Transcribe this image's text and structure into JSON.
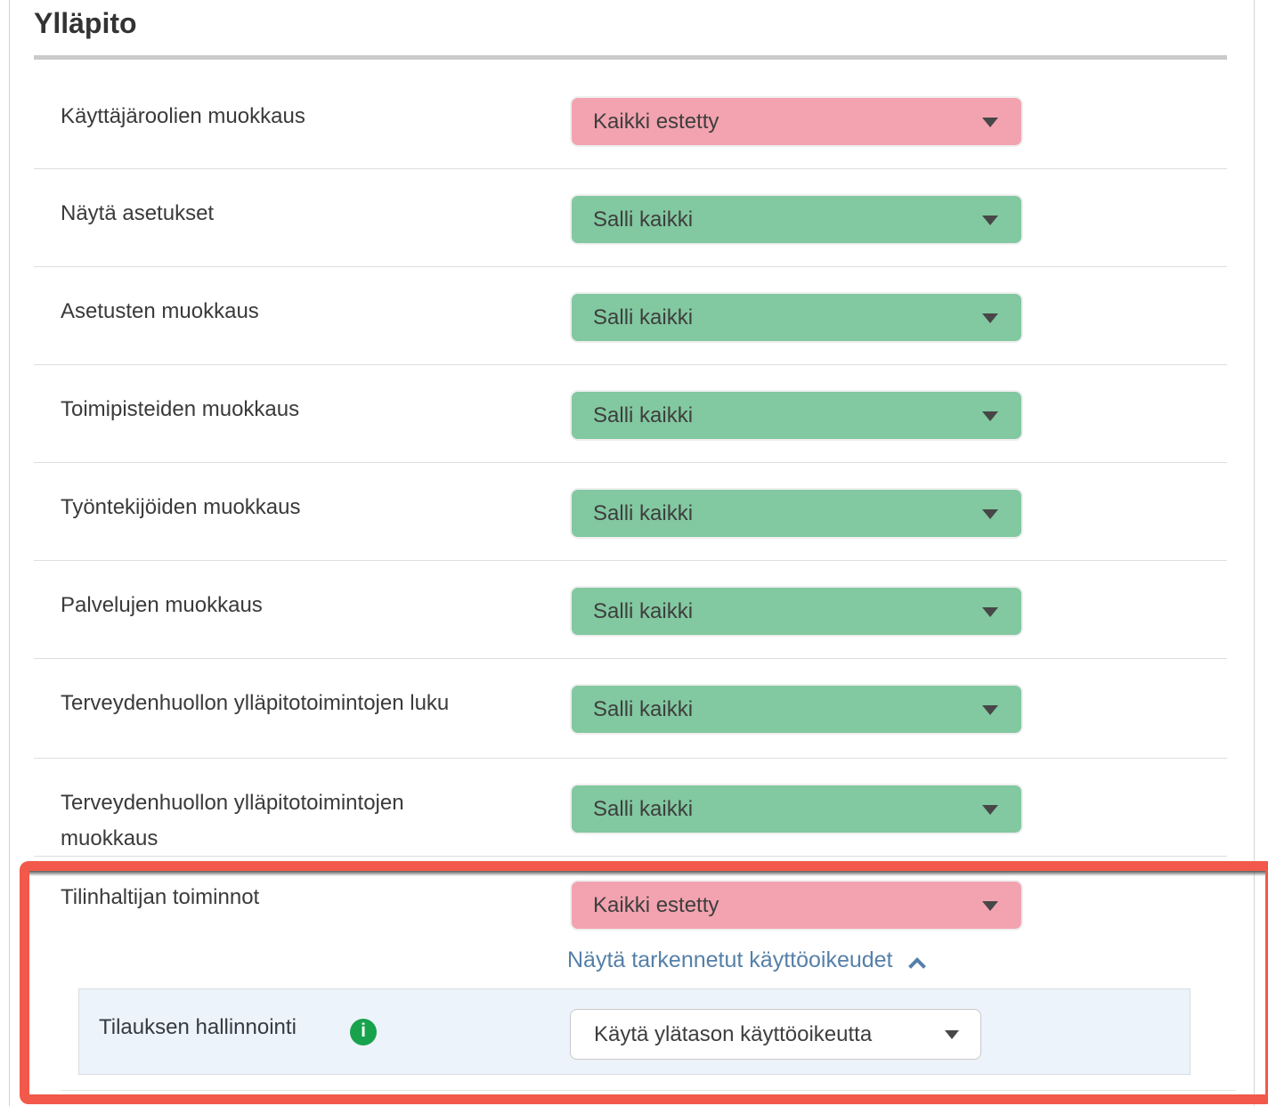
{
  "header": {
    "title": "Ylläpito"
  },
  "rows": [
    {
      "label": "Käyttäjäroolien muokkaus",
      "value": "Kaikki estetty",
      "state": "blocked"
    },
    {
      "label": "Näytä asetukset",
      "value": "Salli kaikki",
      "state": "allowed"
    },
    {
      "label": "Asetusten muokkaus",
      "value": "Salli kaikki",
      "state": "allowed"
    },
    {
      "label": "Toimipisteiden muokkaus",
      "value": "Salli kaikki",
      "state": "allowed"
    },
    {
      "label": "Työntekijöiden muokkaus",
      "value": "Salli kaikki",
      "state": "allowed"
    },
    {
      "label": "Palvelujen muokkaus",
      "value": "Salli kaikki",
      "state": "allowed"
    },
    {
      "label": "Terveydenhuollon ylläpitotoimintojen luku",
      "value": "Salli kaikki",
      "state": "allowed"
    },
    {
      "label": "Terveydenhuollon ylläpitotoimintojen muokkaus",
      "value": "Salli kaikki",
      "state": "allowed"
    }
  ],
  "highlighted_row": {
    "label": "Tilinhaltijan toiminnot",
    "value": "Kaikki estetty",
    "state": "blocked",
    "advanced_toggle": {
      "label": "Näytä tarkennetut käyttöoikeudet",
      "icon": "chevron-up-icon",
      "expanded": true
    },
    "sub_row": {
      "label": "Tilauksen hallinnointi",
      "info_icon": "info-icon",
      "value": "Käytä ylätason käyttöoikeutta"
    }
  },
  "icons": {
    "dropdown_caret": "chevron-down-icon",
    "collapse": "chevron-up-icon",
    "info": "info-icon"
  },
  "colors": {
    "blocked_bg": "#F2A3AF",
    "allowed_bg": "#82C8A0",
    "highlight_border": "#F2594B",
    "link": "#5580A8",
    "info_icon_bg": "#18A24D",
    "subpanel_bg": "#EDF3FA"
  }
}
